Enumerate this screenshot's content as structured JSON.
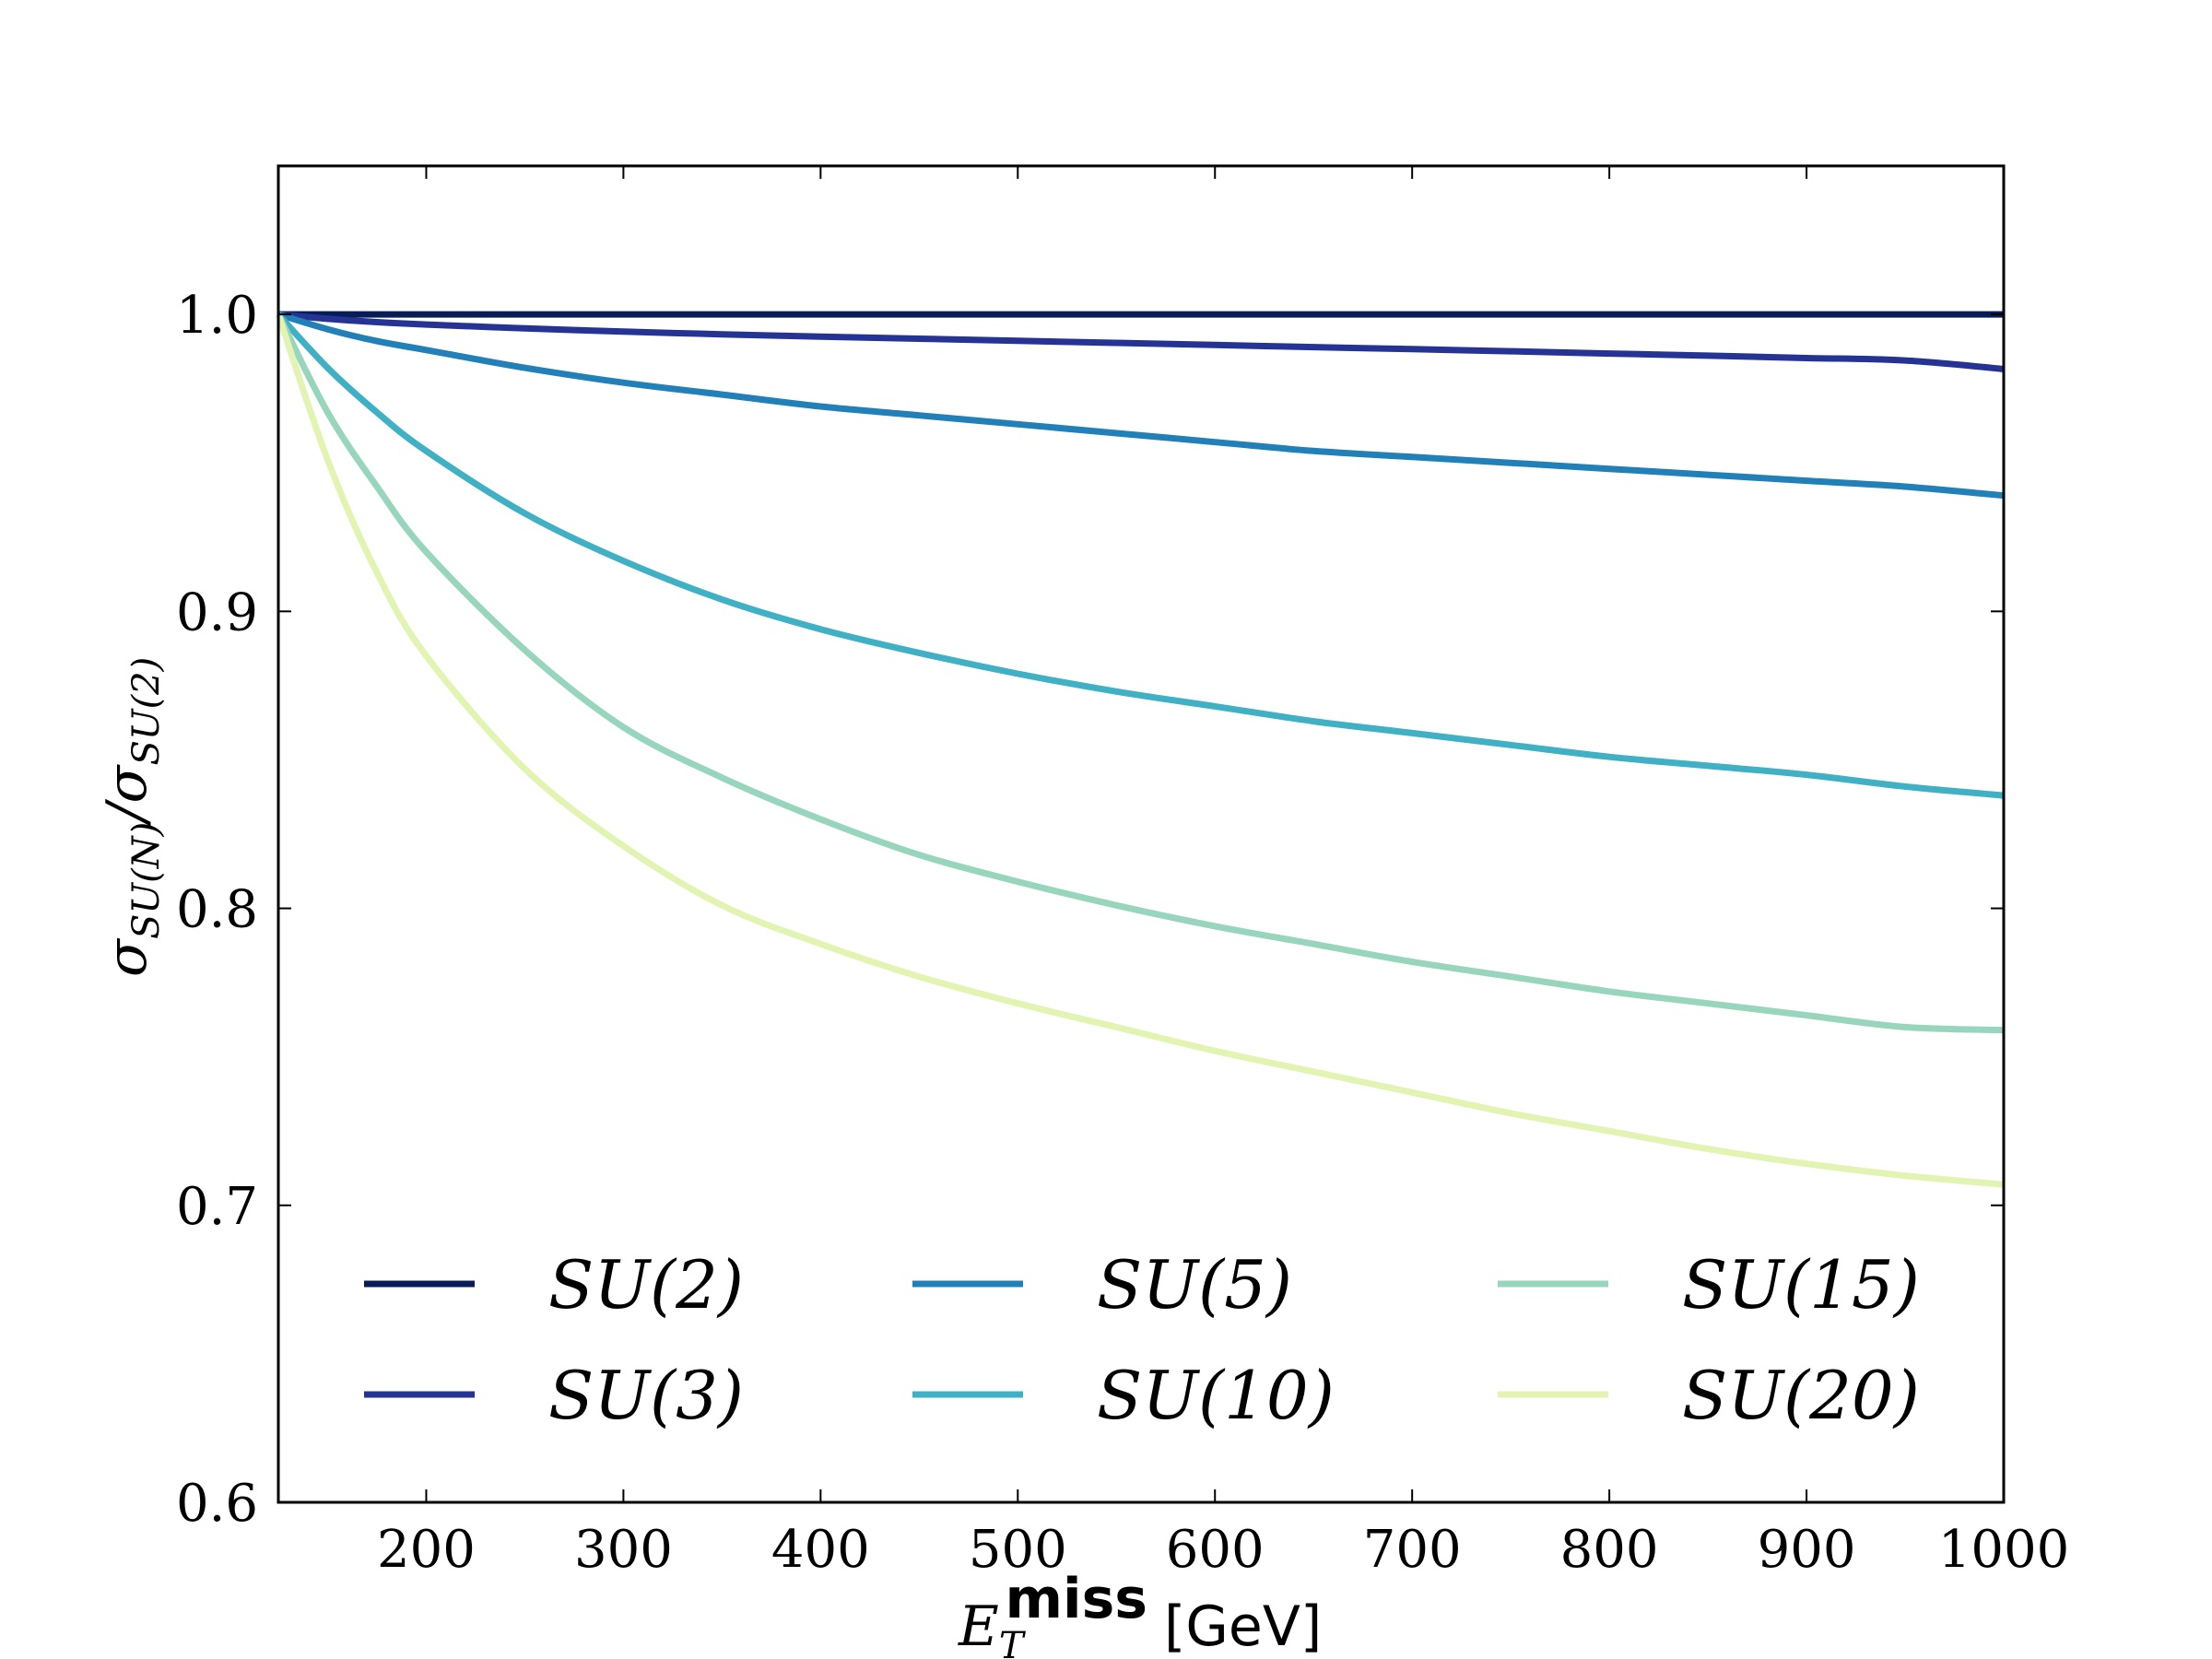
{
  "chart_data": {
    "type": "line",
    "title": "",
    "xlabel": {
      "main": "E",
      "sub": "T",
      "sup": "miss",
      "unit": "[GeV]"
    },
    "ylabel": {
      "main": "σ",
      "sub1": "SU(N)",
      "sep": "/σ",
      "sub2": "SU(2)"
    },
    "xlim": [
      125,
      1000
    ],
    "ylim": [
      0.6,
      1.05
    ],
    "xticks": [
      200,
      300,
      400,
      500,
      600,
      700,
      800,
      900,
      1000
    ],
    "yticks": [
      0.6,
      0.7,
      0.8,
      0.9,
      1.0
    ],
    "xtick_labels": [
      "200",
      "300",
      "400",
      "500",
      "600",
      "700",
      "800",
      "900",
      "1000"
    ],
    "ytick_labels": [
      "0.6",
      "0.7",
      "0.8",
      "0.9",
      "1.0"
    ],
    "grid": false,
    "legend": "lower center, 3 columns",
    "x": [
      125,
      150,
      175,
      200,
      250,
      300,
      350,
      400,
      450,
      500,
      550,
      600,
      650,
      700,
      750,
      800,
      850,
      900,
      950,
      1000
    ],
    "series": [
      {
        "name": "SU(2)",
        "label": "SU(2)",
        "color": "#081d58",
        "values": [
          1.0,
          1.0,
          1.0,
          1.0,
          1.0,
          1.0,
          1.0,
          1.0,
          1.0,
          1.0,
          1.0,
          1.0,
          1.0,
          1.0,
          1.0,
          1.0,
          1.0,
          1.0,
          1.0,
          1.0
        ]
      },
      {
        "name": "SU(3)",
        "label": "SU(3)",
        "color": "#253494",
        "values": [
          1.0,
          0.9985,
          0.9974,
          0.9966,
          0.9953,
          0.9942,
          0.9933,
          0.9925,
          0.9918,
          0.9911,
          0.9904,
          0.9897,
          0.989,
          0.9883,
          0.9876,
          0.9868,
          0.9861,
          0.9853,
          0.9845,
          0.9816
        ]
      },
      {
        "name": "SU(5)",
        "label": "SU(5)",
        "color": "#2280b8",
        "values": [
          1.0,
          0.995,
          0.991,
          0.988,
          0.982,
          0.977,
          0.973,
          0.969,
          0.966,
          0.963,
          0.96,
          0.957,
          0.954,
          0.952,
          0.95,
          0.948,
          0.946,
          0.944,
          0.942,
          0.939
        ]
      },
      {
        "name": "SU(10)",
        "label": "SU(10)",
        "color": "#40b0c4",
        "values": [
          1.0,
          0.982,
          0.967,
          0.954,
          0.933,
          0.917,
          0.904,
          0.894,
          0.886,
          0.879,
          0.873,
          0.868,
          0.863,
          0.859,
          0.855,
          0.851,
          0.848,
          0.845,
          0.841,
          0.838
        ]
      },
      {
        "name": "SU(15)",
        "label": "SU(15)",
        "color": "#97d5bc",
        "values": [
          1.0,
          0.967,
          0.942,
          0.92,
          0.887,
          0.861,
          0.844,
          0.83,
          0.818,
          0.809,
          0.801,
          0.794,
          0.788,
          0.782,
          0.777,
          0.772,
          0.768,
          0.764,
          0.76,
          0.759
        ]
      },
      {
        "name": "SU(20)",
        "label": "SU(20)",
        "color": "#e2f4b1",
        "values": [
          1.0,
          0.951,
          0.913,
          0.885,
          0.847,
          0.821,
          0.801,
          0.788,
          0.777,
          0.768,
          0.76,
          0.752,
          0.745,
          0.738,
          0.731,
          0.725,
          0.719,
          0.714,
          0.71,
          0.707
        ]
      }
    ]
  }
}
